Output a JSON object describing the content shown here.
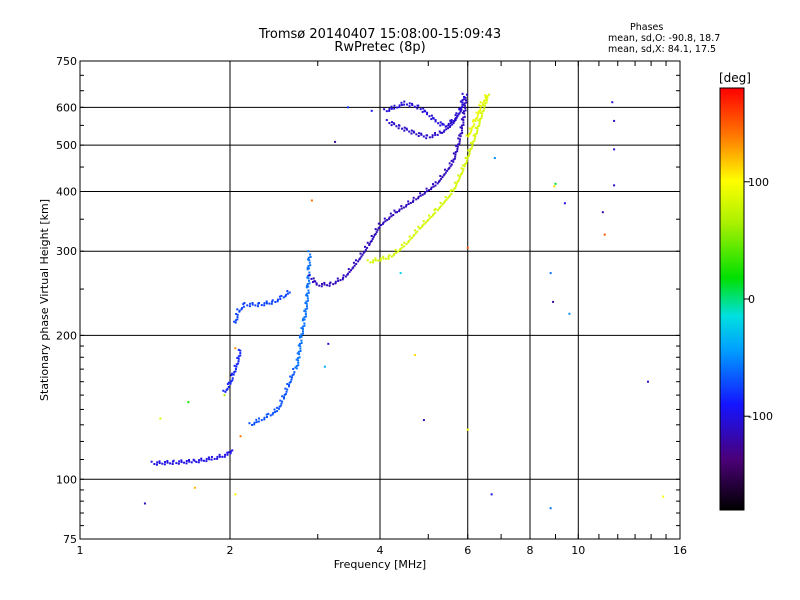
{
  "title_line1": "Tromsø 20140407 15:08:00-15:09:43",
  "title_line2": "RwPretec (8p)",
  "stats": {
    "heading": "Phases",
    "o_line": "mean, sd,O: -90.8, 18.7",
    "x_line": "mean, sd,X:  84.1, 17.5"
  },
  "colorbar": {
    "label": "[deg]",
    "ticks": [
      "100",
      "0",
      "-100"
    ],
    "tick_values": [
      100,
      0,
      -100
    ],
    "range": [
      -180,
      180
    ]
  },
  "chart_data": {
    "type": "scatter",
    "xlabel": "Frequency [MHz]",
    "ylabel": "Stationary phase Virtual Height [km]",
    "x_scale": "log",
    "y_scale": "log",
    "xlim": [
      1,
      16
    ],
    "ylim": [
      75,
      750
    ],
    "grid": true,
    "x_ticks": [
      1,
      2,
      4,
      6,
      8,
      10,
      16
    ],
    "x_tick_labels": [
      "1",
      "2",
      "4",
      "6",
      "8",
      "10",
      "16"
    ],
    "y_ticks": [
      75,
      100,
      200,
      300,
      400,
      500,
      600,
      750
    ],
    "y_tick_labels": [
      "75",
      "100",
      "200",
      "300",
      "400",
      "500",
      "600",
      "750"
    ],
    "color_variable": "phase [deg]",
    "traces": [
      {
        "points": [
          [
            1.4,
            108
          ],
          [
            1.55,
            108.5
          ],
          [
            1.7,
            109
          ],
          [
            1.85,
            110.5
          ],
          [
            2.0,
            113
          ],
          [
            2.02,
            116
          ]
        ],
        "phase": -100
      },
      {
        "points": [
          [
            1.95,
            152
          ],
          [
            2.0,
            158
          ],
          [
            2.03,
            165
          ],
          [
            2.08,
            178
          ],
          [
            2.1,
            188
          ]
        ],
        "phase": -85
      },
      {
        "points": [
          [
            2.05,
            212
          ],
          [
            2.08,
            225
          ],
          [
            2.15,
            232
          ],
          [
            2.3,
            232
          ],
          [
            2.45,
            235
          ],
          [
            2.55,
            240
          ],
          [
            2.65,
            248
          ]
        ],
        "phase": -75
      },
      {
        "points": [
          [
            2.2,
            130
          ],
          [
            2.3,
            133
          ],
          [
            2.4,
            136
          ],
          [
            2.5,
            140
          ],
          [
            2.56,
            148
          ],
          [
            2.62,
            157
          ],
          [
            2.7,
            170
          ]
        ],
        "phase": -70
      },
      {
        "points": [
          [
            2.72,
            170
          ],
          [
            2.75,
            182
          ],
          [
            2.78,
            198
          ],
          [
            2.82,
            215
          ],
          [
            2.85,
            232
          ],
          [
            2.87,
            252
          ],
          [
            2.88,
            275
          ],
          [
            2.89,
            300
          ]
        ],
        "phase": -60
      },
      {
        "points": [
          [
            2.9,
            265
          ],
          [
            3.0,
            255
          ],
          [
            3.2,
            256
          ],
          [
            3.4,
            265
          ],
          [
            3.6,
            285
          ],
          [
            3.8,
            310
          ],
          [
            4.0,
            340
          ],
          [
            4.3,
            362
          ],
          [
            4.7,
            385
          ],
          [
            5.2,
            415
          ],
          [
            5.6,
            460
          ],
          [
            5.8,
            520
          ],
          [
            5.9,
            580
          ],
          [
            5.95,
            640
          ]
        ],
        "phase": -115
      },
      {
        "points": [
          [
            4.1,
            590
          ],
          [
            4.3,
            600
          ],
          [
            4.5,
            612
          ],
          [
            4.8,
            600
          ],
          [
            5.0,
            580
          ],
          [
            5.2,
            560
          ],
          [
            5.4,
            548
          ],
          [
            5.6,
            560
          ],
          [
            5.8,
            590
          ],
          [
            5.9,
            640
          ]
        ],
        "phase": -105
      },
      {
        "points": [
          [
            4.15,
            560
          ],
          [
            4.4,
            545
          ],
          [
            4.7,
            530
          ],
          [
            5.0,
            520
          ],
          [
            5.3,
            530
          ],
          [
            5.6,
            555
          ],
          [
            5.85,
            600
          ]
        ],
        "phase": -110
      },
      {
        "points": [
          [
            3.8,
            285
          ],
          [
            4.2,
            292
          ],
          [
            4.5,
            310
          ],
          [
            4.8,
            335
          ],
          [
            5.2,
            365
          ],
          [
            5.6,
            400
          ],
          [
            5.9,
            450
          ],
          [
            6.2,
            520
          ],
          [
            6.4,
            580
          ],
          [
            6.6,
            640
          ]
        ],
        "phase": 80
      },
      {
        "points": [
          [
            6.0,
            520
          ],
          [
            6.2,
            560
          ],
          [
            6.4,
            610
          ],
          [
            6.6,
            640
          ]
        ],
        "phase": 90
      }
    ],
    "scattered_points": [
      {
        "x": 1.35,
        "y": 89,
        "phase": -115
      },
      {
        "x": 1.45,
        "y": 134,
        "phase": 85
      },
      {
        "x": 1.7,
        "y": 96,
        "phase": 120
      },
      {
        "x": 1.65,
        "y": 145,
        "phase": 20
      },
      {
        "x": 1.95,
        "y": 150,
        "phase": 60
      },
      {
        "x": 2.05,
        "y": 93,
        "phase": 100
      },
      {
        "x": 2.05,
        "y": 188,
        "phase": 130
      },
      {
        "x": 2.1,
        "y": 123,
        "phase": 140
      },
      {
        "x": 2.92,
        "y": 383,
        "phase": 140
      },
      {
        "x": 3.1,
        "y": 172,
        "phase": -40
      },
      {
        "x": 3.15,
        "y": 192,
        "phase": -100
      },
      {
        "x": 3.25,
        "y": 508,
        "phase": -130
      },
      {
        "x": 3.45,
        "y": 600,
        "phase": -80
      },
      {
        "x": 3.85,
        "y": 590,
        "phase": -90
      },
      {
        "x": 4.4,
        "y": 270,
        "phase": -20
      },
      {
        "x": 4.7,
        "y": 182,
        "phase": 110
      },
      {
        "x": 4.9,
        "y": 133,
        "phase": -115
      },
      {
        "x": 6.0,
        "y": 127,
        "phase": 100
      },
      {
        "x": 6.0,
        "y": 305,
        "phase": 150
      },
      {
        "x": 6.7,
        "y": 93,
        "phase": -100
      },
      {
        "x": 6.8,
        "y": 470,
        "phase": -50
      },
      {
        "x": 8.8,
        "y": 87,
        "phase": -60
      },
      {
        "x": 8.8,
        "y": 270,
        "phase": -60
      },
      {
        "x": 8.9,
        "y": 235,
        "phase": -130
      },
      {
        "x": 8.95,
        "y": 410,
        "phase": 110
      },
      {
        "x": 9.0,
        "y": 415,
        "phase": 10
      },
      {
        "x": 9.4,
        "y": 378,
        "phase": -100
      },
      {
        "x": 9.6,
        "y": 222,
        "phase": -50
      },
      {
        "x": 11.2,
        "y": 362,
        "phase": -120
      },
      {
        "x": 11.3,
        "y": 325,
        "phase": 150
      },
      {
        "x": 11.7,
        "y": 615,
        "phase": -110
      },
      {
        "x": 11.8,
        "y": 412,
        "phase": -110
      },
      {
        "x": 11.8,
        "y": 490,
        "phase": -110
      },
      {
        "x": 11.8,
        "y": 562,
        "phase": -110
      },
      {
        "x": 13.8,
        "y": 160,
        "phase": -110
      },
      {
        "x": 14.8,
        "y": 92,
        "phase": 100
      }
    ]
  }
}
